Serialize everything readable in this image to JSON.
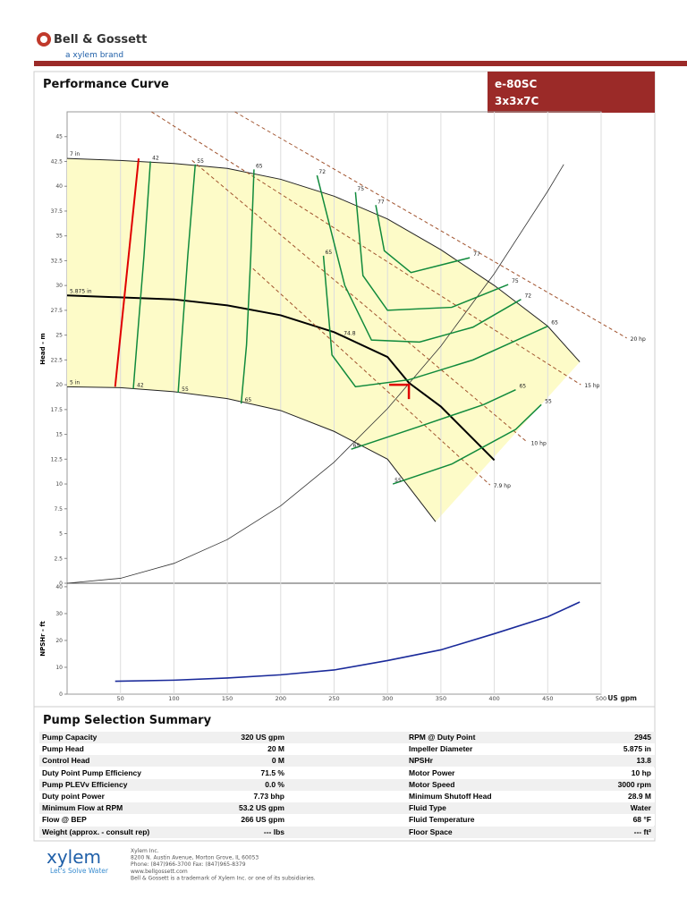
{
  "header": {
    "brand": "Bell & Gossett",
    "tagline": "a xylem brand"
  },
  "title": "Performance Curve",
  "model": {
    "name": "e-80SC",
    "size": "3x3x7C"
  },
  "chart_data": [
    {
      "type": "line",
      "ylabel": "Head - m",
      "xlim": [
        0,
        500
      ],
      "ylim": [
        0,
        47.5
      ],
      "yticks": [
        0,
        2.5,
        5,
        7.5,
        10,
        12.5,
        15,
        17.5,
        20,
        22.5,
        25,
        27.5,
        30,
        32.5,
        35,
        37.5,
        40,
        42.5,
        45
      ],
      "fill_color": "#fdfbc8",
      "series": [
        {
          "name": "7 in",
          "kind": "impeller",
          "color": "#222222",
          "width": 1,
          "x": [
            0,
            50,
            100,
            150,
            200,
            250,
            300,
            350,
            400,
            450,
            480
          ],
          "values": [
            42.8,
            42.6,
            42.3,
            41.8,
            40.7,
            39,
            36.7,
            33.6,
            30,
            25.9,
            22.3
          ]
        },
        {
          "name": "5.875 in",
          "kind": "impeller",
          "color": "#000000",
          "width": 2,
          "x": [
            0,
            100,
            150,
            200,
            250,
            300,
            320,
            350,
            400
          ],
          "values": [
            29,
            28.6,
            28,
            27,
            25.3,
            22.8,
            20.2,
            17.8,
            12.4
          ]
        },
        {
          "name": "5 in",
          "kind": "impeller",
          "color": "#222222",
          "width": 1,
          "x": [
            0,
            50,
            100,
            150,
            200,
            250,
            300,
            345
          ],
          "values": [
            19.8,
            19.7,
            19.3,
            18.6,
            17.4,
            15.3,
            12.5,
            6.2
          ]
        },
        {
          "kind": "system",
          "color": "#333333",
          "width": 0.8,
          "x": [
            0,
            50,
            100,
            150,
            200,
            250,
            300,
            350,
            400,
            450,
            465
          ],
          "values": [
            0,
            0.5,
            2,
            4.4,
            7.8,
            12.2,
            17.6,
            23.9,
            31.2,
            39.5,
            42.2
          ]
        },
        {
          "kind": "minflow",
          "color": "#e00000",
          "width": 2,
          "x": [
            45,
            67
          ],
          "values": [
            19.8,
            42.8
          ]
        },
        {
          "name": "20 hp",
          "kind": "power",
          "color": "#a0522d",
          "width": 1,
          "x": [
            157,
            524
          ],
          "values": [
            47.5,
            24.7
          ]
        },
        {
          "name": "15 hp",
          "kind": "power",
          "color": "#a0522d",
          "width": 1,
          "x": [
            79,
            481
          ],
          "values": [
            47.5,
            20
          ]
        },
        {
          "name": "10 hp",
          "kind": "power",
          "color": "#a0522d",
          "width": 1,
          "x": [
            117,
            431
          ],
          "values": [
            42.6,
            14.2
          ]
        },
        {
          "name": "7.9 hp",
          "kind": "power",
          "color": "#a0522d",
          "width": 1,
          "x": [
            174,
            396
          ],
          "values": [
            31.7,
            9.9
          ]
        },
        {
          "name": "42",
          "kind": "efficiency",
          "color": "#108a3c",
          "width": 1.5,
          "x": [
            78,
            72,
            66,
            62
          ],
          "values": [
            42.5,
            33,
            25,
            19.6
          ]
        },
        {
          "name": "55",
          "kind": "efficiency",
          "color": "#108a3c",
          "width": 1.5,
          "x": [
            120,
            113,
            107,
            104
          ],
          "values": [
            42.2,
            33,
            24,
            19.2
          ]
        },
        {
          "name": "65",
          "kind": "efficiency",
          "color": "#108a3c",
          "width": 1.5,
          "x": [
            175,
            172,
            168,
            163
          ],
          "values": [
            41.7,
            33,
            24,
            18.1
          ]
        },
        {
          "name": "72",
          "kind": "efficiency",
          "color": "#108a3c",
          "width": 1.5,
          "x": [
            234,
            260,
            285,
            330,
            380,
            425
          ],
          "values": [
            41.1,
            30,
            24.5,
            24.3,
            25.8,
            28.6
          ]
        },
        {
          "name": "75",
          "kind": "efficiency",
          "color": "#108a3c",
          "width": 1.5,
          "x": [
            270,
            277,
            300,
            360,
            413
          ],
          "values": [
            39.4,
            31,
            27.5,
            27.8,
            30.1
          ]
        },
        {
          "name": "77",
          "kind": "efficiency",
          "color": "#108a3c",
          "width": 1.5,
          "x": [
            289,
            297,
            322,
            377
          ],
          "values": [
            38.1,
            33.5,
            31.3,
            32.8
          ]
        },
        {
          "name": "65",
          "kind": "efficiency",
          "color": "#108a3c",
          "width": 1.5,
          "x": [
            240,
            248,
            270,
            320,
            380,
            450
          ],
          "values": [
            33,
            23,
            19.8,
            20.5,
            22.5,
            25.9
          ]
        },
        {
          "name": "65",
          "kind": "efficiency",
          "color": "#108a3c",
          "width": 1.5,
          "x": [
            266,
            330,
            390,
            420
          ],
          "values": [
            13.5,
            15.8,
            18,
            19.5
          ]
        },
        {
          "name": "55",
          "kind": "efficiency",
          "color": "#108a3c",
          "width": 1.5,
          "x": [
            305,
            360,
            420,
            444
          ],
          "values": [
            10,
            12,
            15.5,
            18
          ]
        }
      ],
      "annotation": {
        "text": "74.8",
        "x": 259,
        "y": 25
      },
      "duty_point": {
        "x": 320,
        "y": 20,
        "color": "#e00000"
      }
    },
    {
      "type": "line",
      "ylabel": "NPSHr - ft",
      "xlabel": "US gpm",
      "xlim": [
        0,
        500
      ],
      "ylim": [
        0,
        41.3
      ],
      "xticks": [
        50,
        100,
        150,
        200,
        250,
        300,
        350,
        400,
        450,
        500
      ],
      "yticks": [
        0,
        10,
        20,
        30,
        40
      ],
      "grid": true,
      "series": [
        {
          "kind": "npsh",
          "color": "#1a2a9a",
          "width": 1.6,
          "x": [
            45,
            100,
            150,
            200,
            250,
            300,
            350,
            400,
            450,
            480
          ],
          "values": [
            4.8,
            5.2,
            6,
            7.2,
            9,
            12.5,
            16.5,
            22.5,
            28.8,
            34.3
          ]
        }
      ]
    }
  ],
  "summary": {
    "title": "Pump Selection Summary",
    "left": [
      [
        "Pump Capacity",
        "320 US gpm"
      ],
      [
        "Pump Head",
        "20 M"
      ],
      [
        "Control Head",
        "0 M"
      ],
      [
        "Duty Point Pump Efficiency",
        "71.5 %"
      ],
      [
        "Pump PLEVv Efficiency",
        "0.0 %"
      ],
      [
        "Duty point Power",
        "7.73 bhp"
      ],
      [
        "Minimum Flow at RPM",
        "53.2 US gpm"
      ],
      [
        "Flow @ BEP",
        "266 US gpm"
      ],
      [
        "Weight (approx. - consult rep)",
        "--- lbs"
      ]
    ],
    "right": [
      [
        "RPM @ Duty Point",
        "2945"
      ],
      [
        "Impeller Diameter",
        "5.875 in"
      ],
      [
        "NPSHr",
        "13.8"
      ],
      [
        "Motor Power",
        "10 hp"
      ],
      [
        "Motor Speed",
        "3000 rpm"
      ],
      [
        "Minimum Shutoff Head",
        "28.9 M"
      ],
      [
        "Fluid Type",
        "Water"
      ],
      [
        "Fluid Temperature",
        "68 °F"
      ],
      [
        "Floor Space",
        "--- ft²"
      ]
    ]
  },
  "footer": {
    "logo": "xylem",
    "slogan": "Let's Solve Water",
    "lines": [
      "Xylem Inc.",
      "8200 N. Austin Avenue, Morton Grove, IL 60053",
      "Phone: (847)966-3700 Fax: (847)965-8379",
      "www.bellgossett.com",
      "Bell & Gossett is a trademark of Xylem Inc. or one of its subsidiaries."
    ]
  }
}
